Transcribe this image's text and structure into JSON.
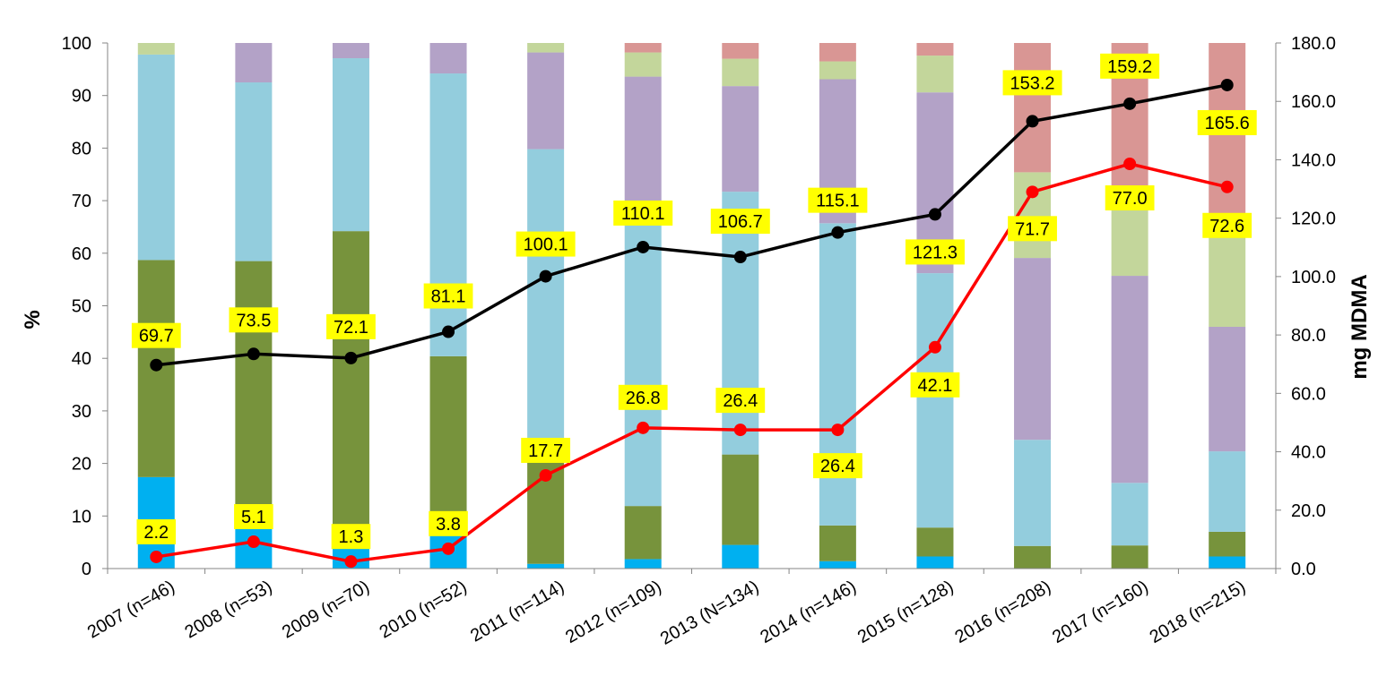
{
  "chart_data": {
    "type": "bar",
    "subtype": "stacked-percent-with-lines",
    "categories": [
      "2007 (n=46)",
      "2008 (n=53)",
      "2009 (n=70)",
      "2010 (n=52)",
      "2011 (n=114)",
      "2012 (n=109)",
      "2013 (N=134)",
      "2014 (n=146)",
      "2015 (n=128)",
      "2016 (n=208)",
      "2017 (n=160)",
      "2018 (n=215)"
    ],
    "ylabel": "%",
    "y2label": "mg MDMA",
    "ylim": [
      0,
      100
    ],
    "y2lim": [
      0,
      180
    ],
    "yticks": [
      "0",
      "10",
      "20",
      "30",
      "40",
      "50",
      "60",
      "70",
      "80",
      "90",
      "100"
    ],
    "y2ticks": [
      "0.0",
      "20.0",
      "40.0",
      "60.0",
      "80.0",
      "100.0",
      "120.0",
      "140.0",
      "160.0",
      "180.0"
    ],
    "grid": false,
    "legend": "none",
    "bar_series": [
      {
        "color": "#00b0f0",
        "values": [
          17.4,
          11.3,
          7.1,
          7.7,
          0.9,
          1.8,
          4.5,
          1.4,
          2.3,
          0.0,
          0.0,
          2.3
        ]
      },
      {
        "color": "#77933c",
        "values": [
          41.3,
          47.2,
          57.1,
          32.7,
          19.3,
          10.1,
          17.2,
          6.8,
          5.5,
          4.3,
          4.4,
          4.7
        ]
      },
      {
        "color": "#93cddd",
        "values": [
          39.1,
          34.0,
          32.9,
          53.8,
          59.6,
          57.8,
          50.0,
          57.5,
          48.4,
          20.2,
          11.9,
          15.3
        ]
      },
      {
        "color": "#b3a2c7",
        "values": [
          0.0,
          7.5,
          2.9,
          5.8,
          18.4,
          23.9,
          20.1,
          27.4,
          34.4,
          34.6,
          39.4,
          23.7
        ]
      },
      {
        "color": "#c3d69b",
        "values": [
          2.2,
          0.0,
          0.0,
          0.0,
          1.8,
          4.6,
          5.2,
          3.4,
          7.0,
          16.3,
          14.4,
          17.2
        ]
      },
      {
        "color": "#d99694",
        "values": [
          0.0,
          0.0,
          0.0,
          0.0,
          0.0,
          1.8,
          3.0,
          3.5,
          2.4,
          24.6,
          29.9,
          36.8
        ]
      }
    ],
    "line_series": [
      {
        "color": "#000000",
        "axis": "y2",
        "values": [
          69.7,
          73.5,
          72.1,
          81.1,
          100.1,
          110.1,
          106.7,
          115.1,
          121.3,
          153.2,
          159.2,
          165.6
        ],
        "labels": [
          "69.7",
          "73.5",
          "72.1",
          "81.1",
          "100.1",
          "110.1",
          "106.7",
          "115.1",
          "121.3",
          "153.2",
          "159.2",
          "165.6"
        ]
      },
      {
        "color": "#ff0000",
        "axis": "y2",
        "values": [
          4.0,
          9.2,
          2.4,
          6.8,
          31.9,
          48.2,
          47.5,
          47.5,
          75.8,
          129.0,
          138.6,
          130.7
        ],
        "labels": [
          "2.2",
          "5.1",
          "1.3",
          "3.8",
          "17.7",
          "26.8",
          "26.4",
          "26.4",
          "42.1",
          "71.7",
          "77.0",
          "72.6"
        ]
      }
    ],
    "label_box_color": "#ffff00"
  }
}
